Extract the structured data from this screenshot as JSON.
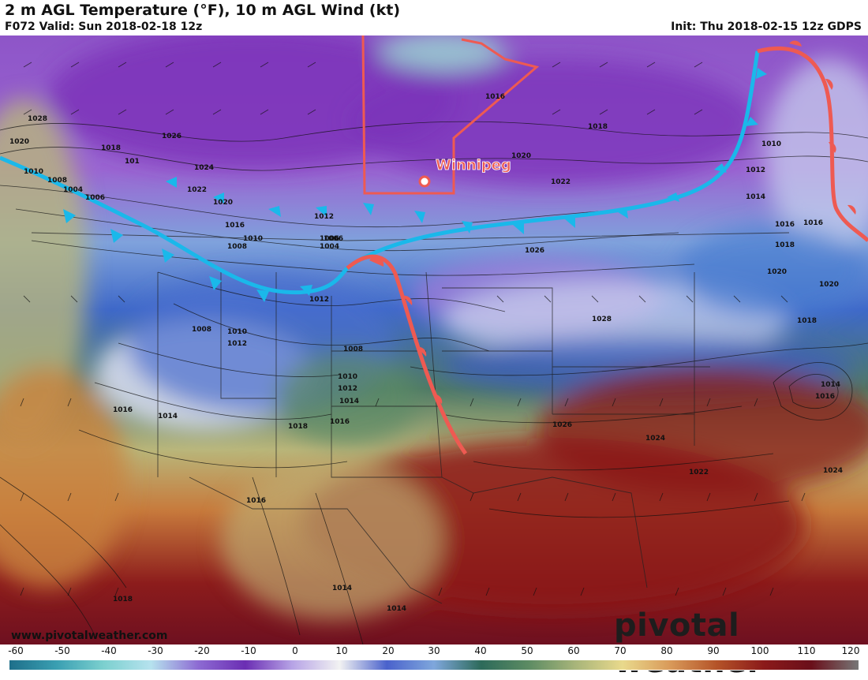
{
  "header": {
    "title": "2 m AGL Temperature (°F), 10 m AGL Wind (kt)",
    "valid": "F072 Valid: Sun 2018-02-18 12z",
    "init": "Init: Thu 2018-02-15 12z GDPS"
  },
  "map": {
    "city_label": "Winnipeg",
    "isobar_labels": [
      "1028",
      "1020",
      "1012",
      "1010",
      "1008",
      "1004",
      "1006",
      "1018",
      "101",
      "1026",
      "1024",
      "1022",
      "1020",
      "1016",
      "1010",
      "1008",
      "1006",
      "1004",
      "1012",
      "1016",
      "1018",
      "1020",
      "1022",
      "1026",
      "1028",
      "1010",
      "1012",
      "1014",
      "1016",
      "1018",
      "1020",
      "1020",
      "1018",
      "1014",
      "1016",
      "1008",
      "1010",
      "1012",
      "1008",
      "1010",
      "1012",
      "1014",
      "1016",
      "1018",
      "1014",
      "1016",
      "1026",
      "1024",
      "1022",
      "1024",
      "1016",
      "1014",
      "1018",
      "1014",
      "1016",
      "1012",
      "1006"
    ],
    "cold_front_color": "#1ab8ea",
    "warm_front_color": "#ee5a52",
    "province_border_color": "#ee5a52"
  },
  "colorbar": {
    "ticks": [
      "-60",
      "-50",
      "-40",
      "-30",
      "-20",
      "-10",
      "0",
      "10",
      "20",
      "30",
      "40",
      "50",
      "60",
      "70",
      "80",
      "90",
      "100",
      "110",
      "120"
    ],
    "stops": [
      "#1e6f8a",
      "#3a9fb2",
      "#7cd0cf",
      "#b6e2ee",
      "#8d6bd3",
      "#6b2eb3",
      "#b7a4e6",
      "#f2f2f2",
      "#4a62cc",
      "#7fa7dc",
      "#2d6a5a",
      "#5c8b63",
      "#a8b57a",
      "#e9d98c",
      "#d99a5a",
      "#b45328",
      "#8b1a1a",
      "#6a0f1a",
      "#777777"
    ]
  },
  "footer": {
    "watermark": "www.pivotalweather.com",
    "brand": "pivotal weather"
  }
}
